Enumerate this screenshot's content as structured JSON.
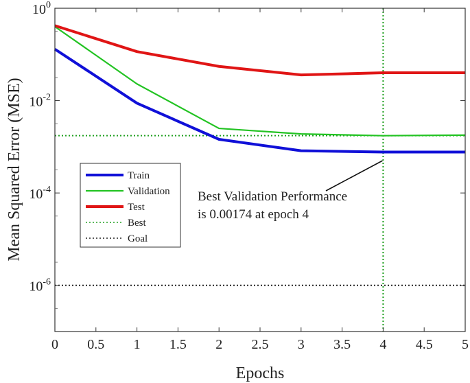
{
  "chart_data": {
    "type": "line",
    "xlabel": "Epochs",
    "ylabel": "Mean Squared Error  (MSE)",
    "xlim": [
      0,
      5
    ],
    "ylim": [
      1e-07,
      1
    ],
    "yscale": "log",
    "grid": false,
    "legend_position": "left-middle",
    "x_ticks": [
      0,
      0.5,
      1,
      1.5,
      2,
      2.5,
      3,
      3.5,
      4,
      4.5,
      5
    ],
    "x_tick_labels": [
      "0",
      "0.5",
      "1",
      "1.5",
      "2",
      "2.5",
      "3",
      "3.5",
      "4",
      "4.5",
      "5"
    ],
    "y_ticks": [
      {
        "value": 1,
        "base": "10",
        "exp": "0"
      },
      {
        "value": 0.01,
        "base": "10",
        "exp": "-2"
      },
      {
        "value": 0.0001,
        "base": "10",
        "exp": "-4"
      },
      {
        "value": 1e-06,
        "base": "10",
        "exp": "-6"
      }
    ],
    "x": [
      0,
      1,
      2,
      3,
      4,
      5
    ],
    "series": [
      {
        "name": "Train",
        "color": "#1010d8",
        "style": "solid",
        "values": [
          0.13,
          0.0088,
          0.00145,
          0.00082,
          0.00077,
          0.00077
        ]
      },
      {
        "name": "Validation",
        "color": "#22c322",
        "style": "solid",
        "values": [
          0.4,
          0.023,
          0.0025,
          0.0019,
          0.00174,
          0.00179
        ]
      },
      {
        "name": "Test",
        "color": "#e01515",
        "style": "solid",
        "values": [
          0.42,
          0.115,
          0.055,
          0.036,
          0.04,
          0.04
        ]
      }
    ],
    "reference_lines": [
      {
        "name": "Best",
        "color": "#22a022",
        "style": "dotted",
        "orientation": "both",
        "x": 4,
        "y": 0.00174
      },
      {
        "name": "Goal",
        "color": "#222222",
        "style": "dotted",
        "orientation": "horizontal",
        "y": 1e-06
      }
    ],
    "annotation": {
      "line1": "Best Validation Performance",
      "line2": "is  0.00174 at epoch 4",
      "points_to": {
        "x": 4,
        "y": 0.0005
      }
    }
  }
}
